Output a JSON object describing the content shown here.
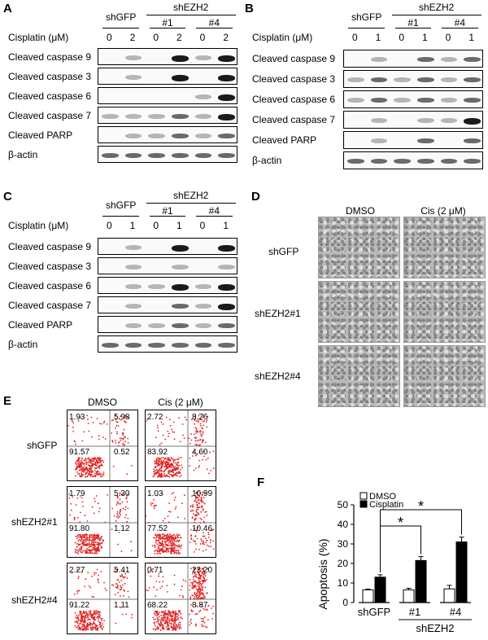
{
  "panels": {
    "A": "A",
    "B": "B",
    "C": "C",
    "D": "D",
    "E": "E",
    "F": "F"
  },
  "blot_common": {
    "shGFP": "shGFP",
    "shEZH2": "shEZH2",
    "clone1": "#1",
    "clone4": "#4",
    "cisplatin_label": "Cisplatin (μM)",
    "rows": [
      "Cleaved caspase 9",
      "Cleaved caspase 3",
      "Cleaved caspase 6",
      "Cleaved caspase 7",
      "Cleaved PARP",
      "β-actin"
    ]
  },
  "blot_A": {
    "doses": [
      "0",
      "2",
      "0",
      "2",
      "0",
      "2"
    ]
  },
  "blot_B": {
    "doses": [
      "0",
      "1",
      "0",
      "1",
      "0",
      "1"
    ]
  },
  "blot_C": {
    "doses": [
      "0",
      "1",
      "0",
      "1",
      "0",
      "1"
    ]
  },
  "micro_D": {
    "cols": [
      "DMSO",
      "Cis (2 μM)"
    ],
    "rows": [
      "shGFP",
      "shEZH2#1",
      "shEZH2#4"
    ]
  },
  "flow_E": {
    "cols": [
      "DMSO",
      "Cis (2 μM)"
    ],
    "rows": [
      "shGFP",
      "shEZH2#1",
      "shEZH2#4"
    ],
    "quadrants": [
      [
        {
          "ul": "1.93",
          "ur": "5.98",
          "ll": "91.57",
          "lr": "0.52"
        },
        {
          "ul": "2.72",
          "ur": "8.76",
          "ll": "83.92",
          "lr": "4.60"
        }
      ],
      [
        {
          "ul": "1.79",
          "ur": "5.30",
          "ll": "91.80",
          "lr": "1.12"
        },
        {
          "ul": "1.03",
          "ur": "10.99",
          "ll": "77.52",
          "lr": "10.46"
        }
      ],
      [
        {
          "ul": "2.27",
          "ur": "5.41",
          "ll": "91.22",
          "lr": "1.11"
        },
        {
          "ul": "0.71",
          "ur": "22.20",
          "ll": "68.22",
          "lr": "8.87"
        }
      ]
    ],
    "colors": {
      "dots": "#e02020"
    }
  },
  "chart_data": {
    "type": "bar",
    "categories": [
      "shGFP",
      "#1",
      "#4"
    ],
    "group_label": "shEZH2",
    "series": [
      {
        "name": "DMSO",
        "values": [
          6.5,
          6.5,
          7
        ],
        "errors": [
          0.4,
          0.8,
          1.8
        ],
        "color": "#ffffff"
      },
      {
        "name": "Cisplatin",
        "values": [
          13,
          21.5,
          31
        ],
        "errors": [
          1.2,
          2.0,
          2.5
        ],
        "color": "#000000"
      }
    ],
    "ylabel": "Apoptosis (%)",
    "ylim": [
      0,
      50
    ],
    "yticks": [
      "0",
      "10",
      "20",
      "30",
      "40",
      "50"
    ],
    "significance": [
      "*",
      "*"
    ],
    "legend": "top-left"
  }
}
